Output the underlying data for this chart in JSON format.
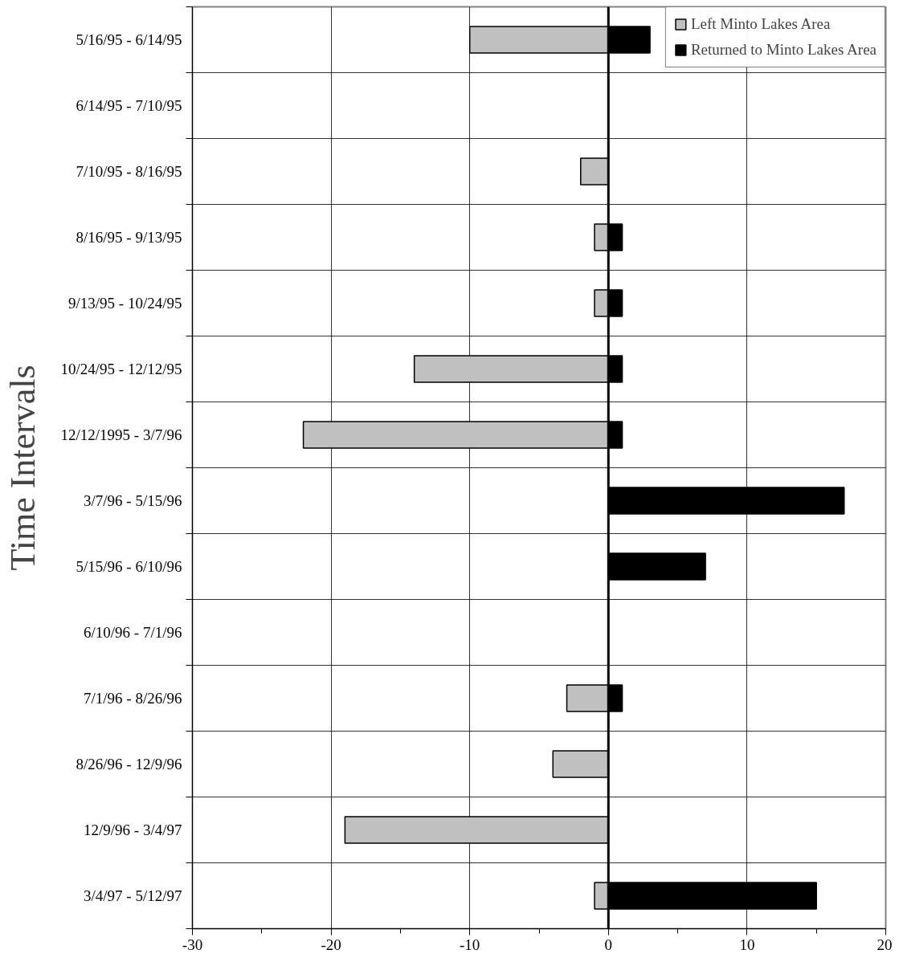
{
  "chart_data": {
    "type": "bar",
    "orientation": "horizontal",
    "ylabel": "Time Intervals",
    "categories": [
      "5/16/95 - 6/14/95",
      "6/14/95 - 7/10/95",
      "7/10/95 - 8/16/95",
      "8/16/95 - 9/13/95",
      "9/13/95 - 10/24/95",
      "10/24/95 - 12/12/95",
      "12/12/1995 - 3/7/96",
      "3/7/96 - 5/15/96",
      "5/15/96 - 6/10/96",
      "6/10/96 - 7/1/96",
      "7/1/96 - 8/26/96",
      "8/26/96 - 12/9/96",
      "12/9/96 - 3/4/97",
      "3/4/97 - 5/12/97"
    ],
    "series": [
      {
        "name": "Left Minto Lakes Area",
        "color": "#c0c0c0",
        "values": [
          -10,
          null,
          -2,
          -1,
          -1,
          -14,
          -22,
          null,
          null,
          null,
          -3,
          -4,
          -19,
          -1
        ]
      },
      {
        "name": "Returned to Minto Lakes Area",
        "color": "#000000",
        "values": [
          3,
          null,
          null,
          1,
          1,
          1,
          1,
          17,
          7,
          null,
          1,
          null,
          null,
          15
        ]
      }
    ],
    "xlim": [
      -30,
      20
    ],
    "xticks": [
      -30,
      {
        "value": -25,
        "label": null
      },
      -20,
      {
        "value": -15,
        "label": null
      },
      -10,
      {
        "value": -5,
        "label": null
      },
      0,
      {
        "value": 5,
        "label": null
      },
      10,
      {
        "value": 15,
        "label": null
      },
      20
    ],
    "ref_lines": [
      {
        "axis": "x",
        "value": 0,
        "color": "#000000"
      }
    ],
    "grid": true,
    "legend": "top right",
    "stacked": true
  }
}
